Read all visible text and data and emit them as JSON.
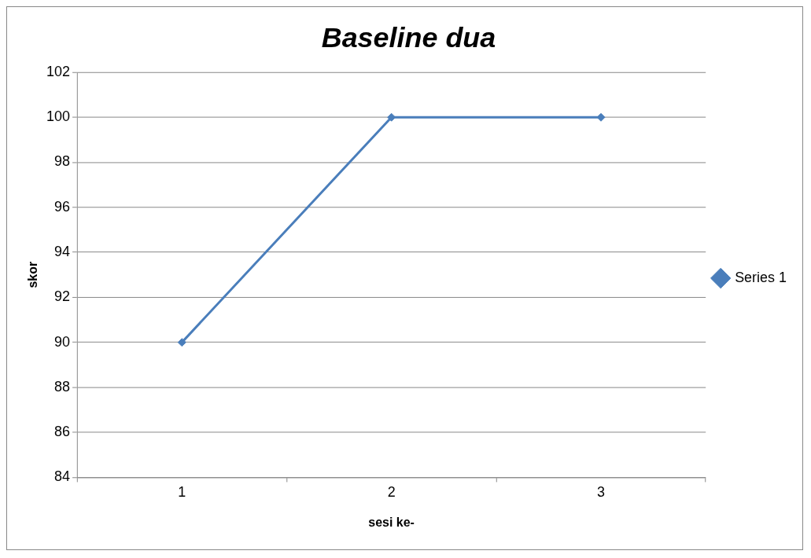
{
  "chart_data": {
    "type": "line",
    "title": "Baseline dua",
    "xlabel": "sesi ke-",
    "ylabel": "skor",
    "categories": [
      "1",
      "2",
      "3"
    ],
    "series": [
      {
        "name": "Series 1",
        "color": "#4a7ebb",
        "values": [
          90,
          100,
          100
        ]
      }
    ],
    "ylim": [
      84,
      102
    ],
    "yticks": [
      84,
      86,
      88,
      90,
      92,
      94,
      96,
      98,
      100,
      102
    ],
    "grid": "y",
    "legend": "right",
    "marker": "diamond"
  }
}
